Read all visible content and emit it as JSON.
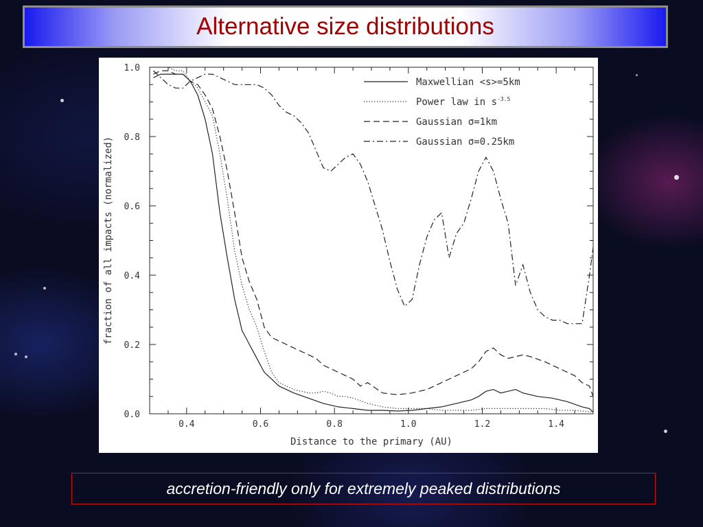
{
  "slide": {
    "title": "Alternative size distributions",
    "caption": "accretion-friendly only for extremely peaked distributions"
  },
  "chart_data": {
    "type": "line",
    "xlabel": "Distance to the primary (AU)",
    "ylabel": "fraction of all impacts (normalized)",
    "xlim": [
      0.3,
      1.5
    ],
    "ylim": [
      0.0,
      1.0
    ],
    "xticks": [
      "0.4",
      "0.6",
      "0.8",
      "1.0",
      "1.2",
      "1.4"
    ],
    "yticks": [
      "0.0",
      "0.2",
      "0.4",
      "0.6",
      "0.8",
      "1.0"
    ],
    "grid": false,
    "legend_position": "top-right",
    "series": [
      {
        "name": "Maxwellian <s>=5km",
        "style": "solid",
        "x": [
          0.31,
          0.33,
          0.35,
          0.37,
          0.39,
          0.41,
          0.43,
          0.45,
          0.47,
          0.49,
          0.51,
          0.53,
          0.55,
          0.57,
          0.59,
          0.61,
          0.65,
          0.69,
          0.73,
          0.77,
          0.81,
          0.85,
          0.89,
          0.93,
          0.97,
          1.01,
          1.05,
          1.09,
          1.13,
          1.17,
          1.19,
          1.21,
          1.23,
          1.25,
          1.27,
          1.29,
          1.31,
          1.35,
          1.39,
          1.43,
          1.47,
          1.49,
          1.5
        ],
        "y": [
          0.97,
          0.98,
          0.98,
          0.98,
          0.98,
          0.96,
          0.92,
          0.85,
          0.75,
          0.58,
          0.45,
          0.33,
          0.24,
          0.2,
          0.16,
          0.12,
          0.08,
          0.06,
          0.045,
          0.03,
          0.02,
          0.015,
          0.01,
          0.01,
          0.008,
          0.01,
          0.015,
          0.02,
          0.03,
          0.04,
          0.05,
          0.065,
          0.07,
          0.06,
          0.065,
          0.07,
          0.06,
          0.05,
          0.045,
          0.035,
          0.02,
          0.015,
          0.005
        ]
      },
      {
        "name": "Power law in s",
        "name_superscript": "-3.5",
        "style": "dotted",
        "x": [
          0.31,
          0.33,
          0.35,
          0.37,
          0.39,
          0.41,
          0.43,
          0.45,
          0.47,
          0.49,
          0.51,
          0.53,
          0.55,
          0.57,
          0.59,
          0.61,
          0.63,
          0.65,
          0.67,
          0.69,
          0.71,
          0.73,
          0.75,
          0.77,
          0.79,
          0.81,
          0.83,
          0.85,
          0.89,
          0.93,
          0.97,
          1.01,
          1.05,
          1.09,
          1.13,
          1.17,
          1.21,
          1.25,
          1.29,
          1.33,
          1.37,
          1.41,
          1.45,
          1.5
        ],
        "y": [
          1.0,
          1.0,
          1.0,
          0.99,
          0.99,
          0.96,
          0.94,
          0.9,
          0.86,
          0.75,
          0.62,
          0.47,
          0.37,
          0.3,
          0.25,
          0.18,
          0.12,
          0.09,
          0.08,
          0.07,
          0.065,
          0.06,
          0.06,
          0.065,
          0.06,
          0.05,
          0.05,
          0.045,
          0.03,
          0.02,
          0.015,
          0.015,
          0.015,
          0.01,
          0.01,
          0.01,
          0.015,
          0.015,
          0.015,
          0.015,
          0.015,
          0.01,
          0.01,
          0.005
        ]
      },
      {
        "name": "Gaussian σ=1km",
        "style": "dashed",
        "x": [
          0.31,
          0.33,
          0.35,
          0.37,
          0.39,
          0.41,
          0.43,
          0.45,
          0.47,
          0.49,
          0.51,
          0.53,
          0.55,
          0.57,
          0.59,
          0.61,
          0.63,
          0.65,
          0.67,
          0.69,
          0.71,
          0.73,
          0.75,
          0.77,
          0.79,
          0.81,
          0.83,
          0.85,
          0.87,
          0.89,
          0.93,
          0.97,
          1.01,
          1.05,
          1.09,
          1.11,
          1.13,
          1.17,
          1.19,
          1.21,
          1.23,
          1.25,
          1.27,
          1.29,
          1.31,
          1.33,
          1.37,
          1.41,
          1.43,
          1.45,
          1.47,
          1.49,
          1.5
        ],
        "y": [
          0.98,
          0.99,
          0.99,
          0.98,
          0.98,
          0.96,
          0.95,
          0.92,
          0.88,
          0.8,
          0.7,
          0.58,
          0.45,
          0.38,
          0.33,
          0.25,
          0.22,
          0.21,
          0.2,
          0.19,
          0.18,
          0.17,
          0.16,
          0.14,
          0.13,
          0.12,
          0.11,
          0.1,
          0.08,
          0.09,
          0.06,
          0.055,
          0.06,
          0.07,
          0.09,
          0.1,
          0.11,
          0.13,
          0.15,
          0.18,
          0.19,
          0.17,
          0.16,
          0.165,
          0.17,
          0.165,
          0.15,
          0.13,
          0.12,
          0.11,
          0.09,
          0.08,
          0.05
        ]
      },
      {
        "name": "Gaussian σ=0.25km",
        "style": "dashdot",
        "x": [
          0.31,
          0.33,
          0.35,
          0.37,
          0.39,
          0.41,
          0.43,
          0.45,
          0.47,
          0.49,
          0.51,
          0.53,
          0.55,
          0.57,
          0.59,
          0.61,
          0.63,
          0.65,
          0.67,
          0.69,
          0.71,
          0.73,
          0.75,
          0.77,
          0.79,
          0.81,
          0.83,
          0.85,
          0.87,
          0.89,
          0.91,
          0.93,
          0.95,
          0.97,
          0.99,
          1.01,
          1.03,
          1.05,
          1.07,
          1.09,
          1.11,
          1.13,
          1.15,
          1.17,
          1.19,
          1.21,
          1.23,
          1.25,
          1.27,
          1.29,
          1.31,
          1.33,
          1.35,
          1.37,
          1.39,
          1.41,
          1.43,
          1.45,
          1.47,
          1.49,
          1.5
        ],
        "y": [
          0.99,
          0.97,
          0.95,
          0.94,
          0.94,
          0.96,
          0.97,
          0.98,
          0.98,
          0.97,
          0.96,
          0.95,
          0.95,
          0.95,
          0.95,
          0.94,
          0.92,
          0.89,
          0.87,
          0.86,
          0.84,
          0.81,
          0.76,
          0.71,
          0.7,
          0.72,
          0.74,
          0.75,
          0.72,
          0.67,
          0.6,
          0.53,
          0.44,
          0.36,
          0.31,
          0.33,
          0.43,
          0.51,
          0.56,
          0.58,
          0.45,
          0.52,
          0.55,
          0.62,
          0.7,
          0.74,
          0.7,
          0.62,
          0.55,
          0.37,
          0.43,
          0.35,
          0.3,
          0.28,
          0.27,
          0.27,
          0.26,
          0.26,
          0.26,
          0.4,
          0.48
        ]
      }
    ]
  }
}
